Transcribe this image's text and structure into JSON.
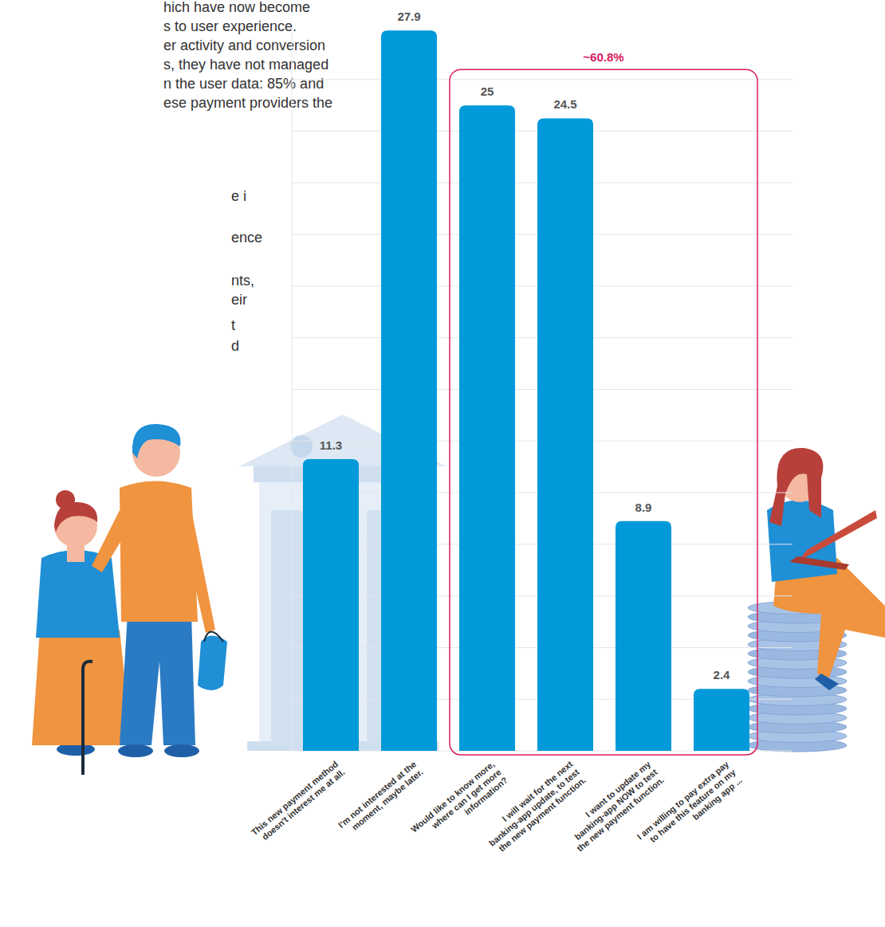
{
  "chart_data": {
    "type": "bar",
    "categories": [
      "This new payment method doesn't interest me at all.",
      "I'm not interested at the moment, maybe later.",
      "Would like to know more, where can I get more information?",
      "I will wait for the next banking-app update, to test the new payment function.",
      "I want to update my banking-app NOW to test the new payment function.",
      "I am willing to pay extra pay to have this feature on my banking app ..."
    ],
    "values": [
      11.3,
      27.9,
      25,
      24.5,
      8.9,
      2.4
    ],
    "color": "#0099d9",
    "ylim": [
      0,
      28
    ],
    "yticks": [
      0,
      2,
      4,
      6,
      8,
      10,
      12,
      14,
      16,
      18,
      20,
      22,
      24,
      26
    ],
    "grid": true,
    "data_labels": true,
    "tick_labels": "x",
    "annotations": [
      {
        "text": "~60.8%",
        "categories": [
          2,
          3,
          4,
          5
        ]
      },
      {
        "text": "hich have now become"
      },
      {
        "text": "s to user experience."
      },
      {
        "text": "er activity and conversion"
      },
      {
        "text": "s, they have not managed"
      },
      {
        "text": "n the user data: 85% and"
      },
      {
        "text": "ese payment providers the"
      },
      {
        "text": "e i"
      },
      {
        "text": "ence"
      },
      {
        "text": "nts,"
      },
      {
        "text": "eir"
      },
      {
        "text": "t"
      },
      {
        "text": "d"
      }
    ]
  }
}
